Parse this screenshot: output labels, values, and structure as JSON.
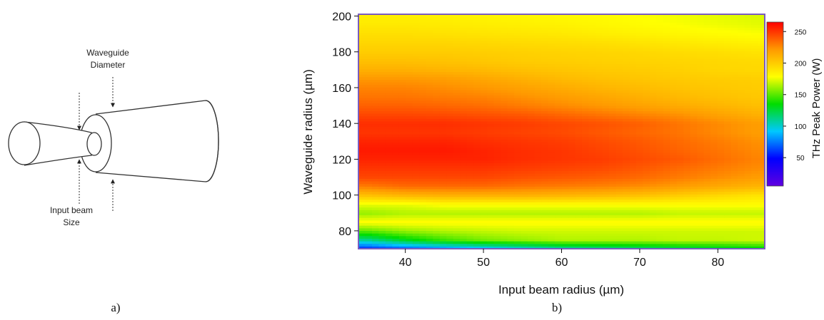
{
  "diagram": {
    "label_top_line1": "Waveguide",
    "label_top_line2": "Diameter",
    "label_bottom_line1": "Input beam",
    "label_bottom_line2": "Size"
  },
  "panels": {
    "a": "a)",
    "b": "b)"
  },
  "chart_data": {
    "type": "heatmap",
    "title": "",
    "xlabel": "Input beam radius (µm)",
    "ylabel": "Waveguide radius (µm)",
    "colorbar_label": "THz Peak Power (W)",
    "xlim": [
      34,
      86
    ],
    "ylim": [
      70,
      201
    ],
    "zlim": [
      5,
      265
    ],
    "xticks": [
      40,
      50,
      60,
      70,
      80
    ],
    "yticks": [
      80,
      100,
      120,
      140,
      160,
      180,
      200
    ],
    "cbticks": [
      50,
      100,
      150,
      200,
      250
    ],
    "colormap": [
      "#6000e0",
      "#0000ff",
      "#00c8ff",
      "#00dd00",
      "#ffff00",
      "#ff9900",
      "#ff0000"
    ],
    "grid": false,
    "x": [
      35,
      40,
      45,
      50,
      55,
      60,
      65,
      70,
      75,
      80,
      85
    ],
    "y": [
      70,
      75,
      80,
      85,
      90,
      95,
      100,
      105,
      110,
      115,
      120,
      125,
      130,
      135,
      140,
      145,
      150,
      155,
      160,
      165,
      170,
      175,
      180,
      185,
      190,
      195,
      200
    ],
    "z": [
      [
        55,
        65,
        75,
        85,
        95,
        105,
        110,
        115,
        120,
        125,
        130
      ],
      [
        110,
        130,
        145,
        155,
        160,
        165,
        165,
        165,
        168,
        168,
        170
      ],
      [
        150,
        160,
        165,
        168,
        170,
        170,
        170,
        170,
        170,
        170,
        170
      ],
      [
        180,
        180,
        180,
        180,
        180,
        180,
        180,
        180,
        180,
        180,
        180
      ],
      [
        160,
        165,
        165,
        165,
        165,
        165,
        165,
        165,
        168,
        168,
        168
      ],
      [
        175,
        175,
        180,
        180,
        180,
        180,
        180,
        180,
        180,
        180,
        180
      ],
      [
        205,
        210,
        212,
        212,
        212,
        210,
        208,
        205,
        200,
        195,
        190
      ],
      [
        230,
        235,
        235,
        235,
        232,
        230,
        228,
        225,
        220,
        215,
        210
      ],
      [
        245,
        245,
        245,
        245,
        242,
        240,
        238,
        235,
        230,
        225,
        220
      ],
      [
        250,
        250,
        250,
        250,
        248,
        246,
        244,
        240,
        235,
        230,
        225
      ],
      [
        255,
        255,
        255,
        255,
        252,
        250,
        248,
        244,
        240,
        234,
        228
      ],
      [
        258,
        258,
        258,
        255,
        252,
        250,
        246,
        242,
        237,
        232,
        226
      ],
      [
        255,
        255,
        255,
        252,
        250,
        248,
        244,
        240,
        235,
        230,
        224
      ],
      [
        250,
        250,
        250,
        248,
        246,
        244,
        240,
        236,
        232,
        226,
        220
      ],
      [
        252,
        252,
        252,
        250,
        248,
        245,
        242,
        238,
        232,
        226,
        220
      ],
      [
        245,
        245,
        244,
        242,
        240,
        236,
        232,
        228,
        224,
        218,
        212
      ],
      [
        238,
        238,
        236,
        234,
        230,
        226,
        222,
        218,
        214,
        210,
        206
      ],
      [
        232,
        232,
        230,
        228,
        224,
        220,
        216,
        212,
        208,
        205,
        202
      ],
      [
        228,
        228,
        225,
        222,
        218,
        214,
        210,
        207,
        204,
        202,
        200
      ],
      [
        222,
        222,
        220,
        216,
        212,
        208,
        205,
        203,
        201,
        200,
        199
      ],
      [
        212,
        212,
        210,
        208,
        205,
        203,
        201,
        200,
        198,
        196,
        195
      ],
      [
        205,
        205,
        204,
        202,
        200,
        199,
        198,
        197,
        196,
        195,
        194
      ],
      [
        200,
        200,
        200,
        199,
        198,
        197,
        196,
        195,
        193,
        192,
        190
      ],
      [
        196,
        196,
        196,
        195,
        194,
        193,
        192,
        190,
        188,
        186,
        184
      ],
      [
        192,
        192,
        191,
        190,
        189,
        188,
        186,
        184,
        182,
        180,
        178
      ],
      [
        188,
        188,
        187,
        186,
        185,
        184,
        182,
        180,
        178,
        176,
        174
      ],
      [
        185,
        185,
        184,
        183,
        182,
        181,
        180,
        178,
        176,
        174,
        172
      ]
    ]
  }
}
